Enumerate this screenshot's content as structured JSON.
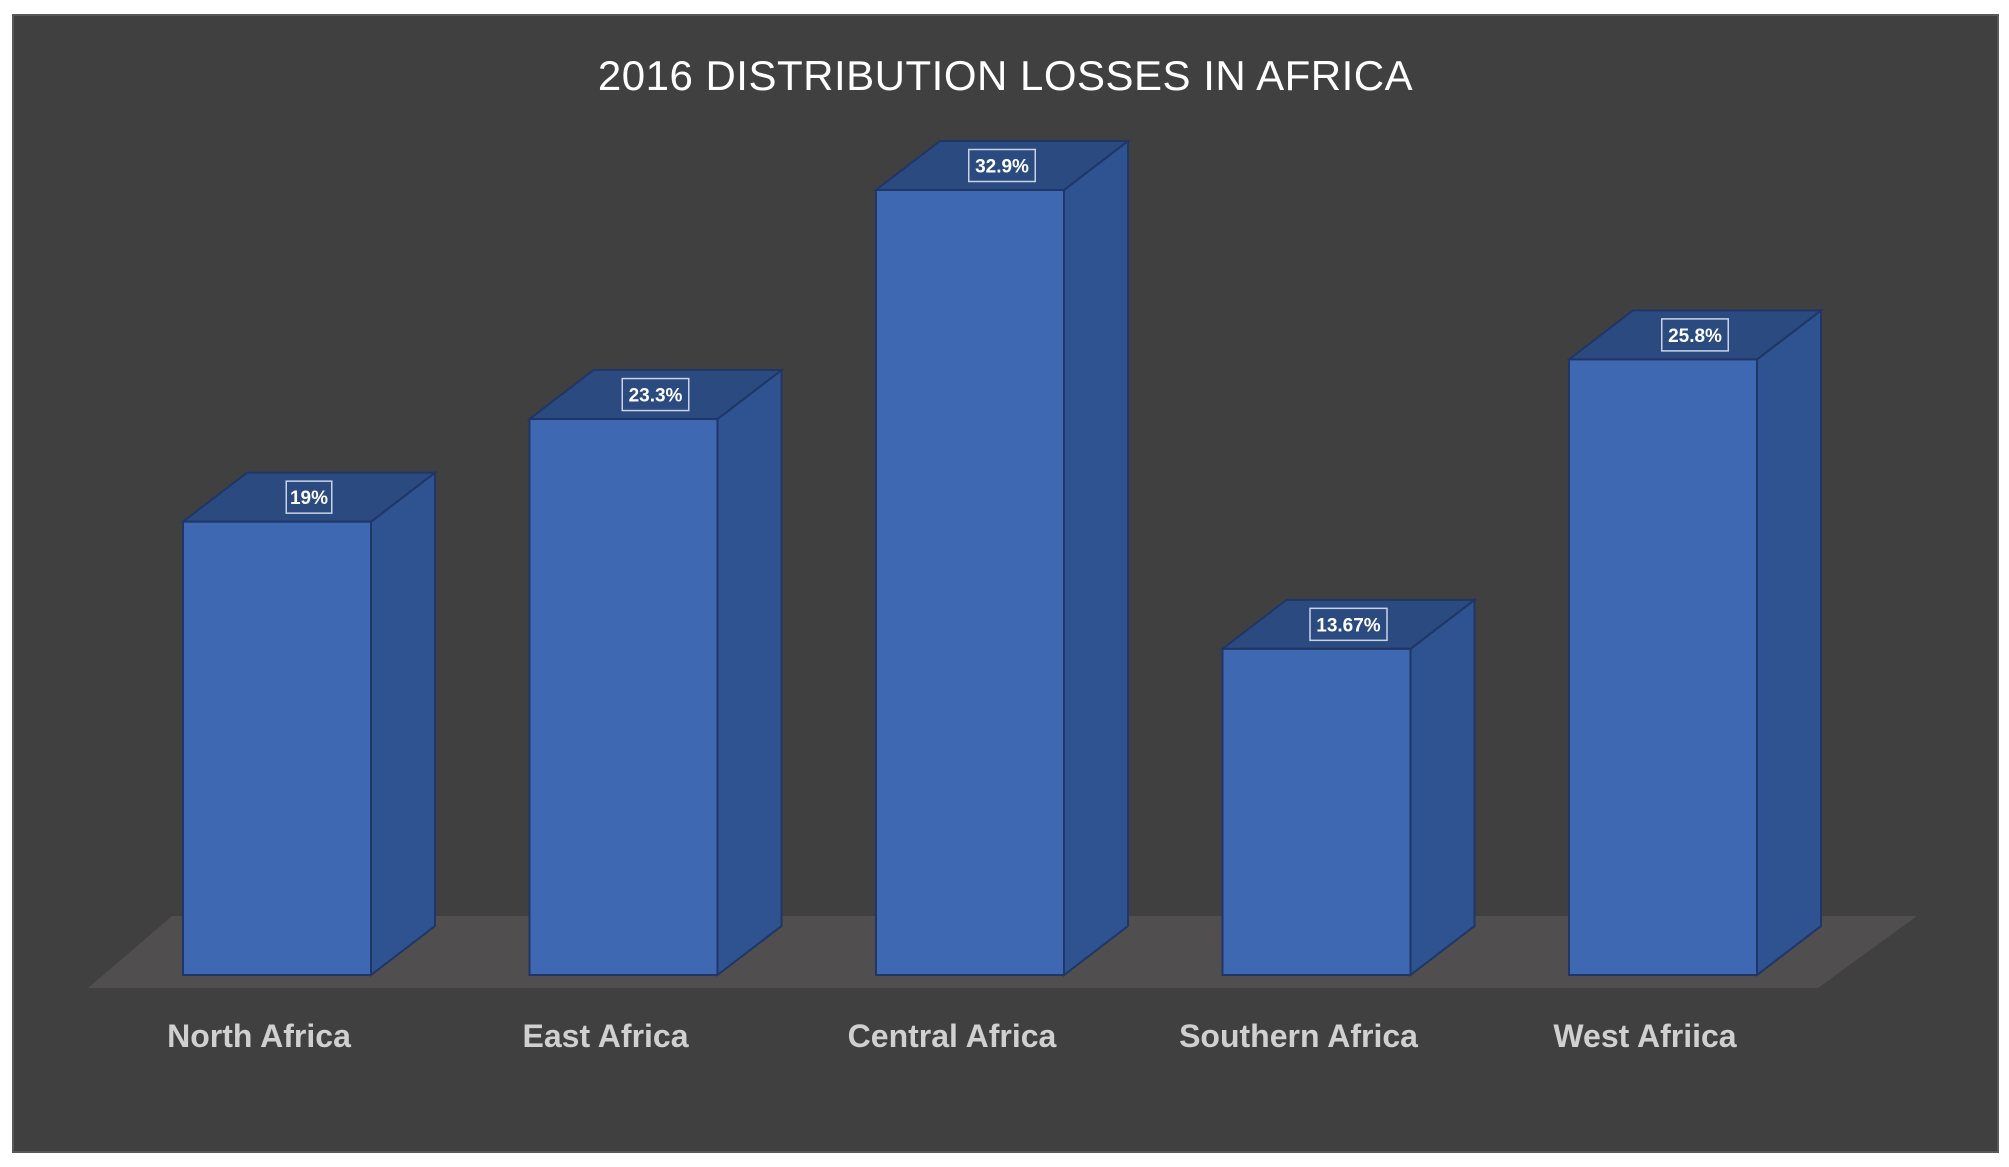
{
  "chart_data": {
    "type": "bar",
    "title": "2016 DISTRIBUTION LOSSES IN AFRICA",
    "categories": [
      "North Africa",
      "East Africa",
      "Central Africa",
      "Southern Africa",
      "West Afriica"
    ],
    "values": [
      19,
      23.3,
      32.9,
      13.67,
      25.8
    ],
    "data_labels": [
      "19%",
      "23.3%",
      "32.9%",
      "13.67%",
      "25.8%"
    ],
    "xlabel": "",
    "ylabel": "",
    "ylim": [
      0,
      32.9
    ],
    "grid": false,
    "legend": "none",
    "style": "3d-column",
    "colors": {
      "background": "#404040",
      "floor": "#504e4f",
      "bar_front": "#3e68b1",
      "bar_side": "#2f5390",
      "bar_top": "#2b4a80",
      "bar_edge": "#1f3666",
      "label_text": "#ffffff",
      "category_text": "#d0d0d0",
      "title_text": "#ffffff"
    }
  }
}
